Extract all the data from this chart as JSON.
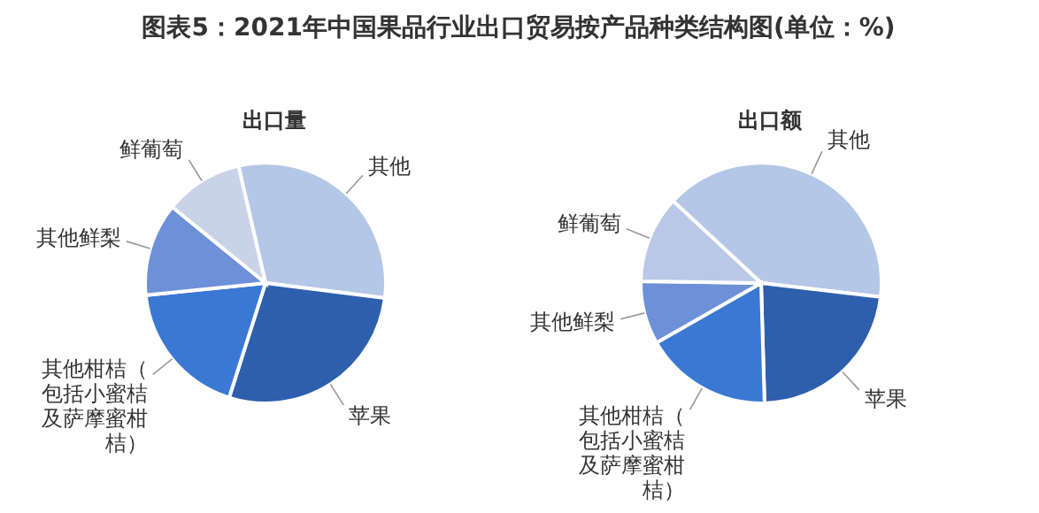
{
  "chart_data": [
    {
      "type": "pie",
      "title": "出口量",
      "annotations": [
        "图表5：2021年中国果品行业出口贸易按产品种类结构图(单位：%)"
      ],
      "categories": [
        "其他",
        "苹果",
        "其他柑桔（包括小蜜桔及萨摩蜜柑桔）",
        "其他鲜梨",
        "鲜葡萄"
      ],
      "values": [
        30.6,
        27.9,
        18.5,
        12.5,
        10.5
      ],
      "colors": [
        "#b4c7e7",
        "#2e5fad",
        "#3a78d4",
        "#6d90d8",
        "#c9d3e8"
      ]
    },
    {
      "type": "pie",
      "title": "出口额",
      "categories": [
        "其他",
        "苹果",
        "其他柑桔（包括小蜜桔及萨摩蜜柑桔）",
        "其他鲜梨",
        "鲜葡萄"
      ],
      "values": [
        39.9,
        22.7,
        17.2,
        8.5,
        11.7
      ],
      "colors": [
        "#b4c7e7",
        "#2e5fad",
        "#3a78d4",
        "#6d90d8",
        "#b9c8e6"
      ]
    }
  ]
}
